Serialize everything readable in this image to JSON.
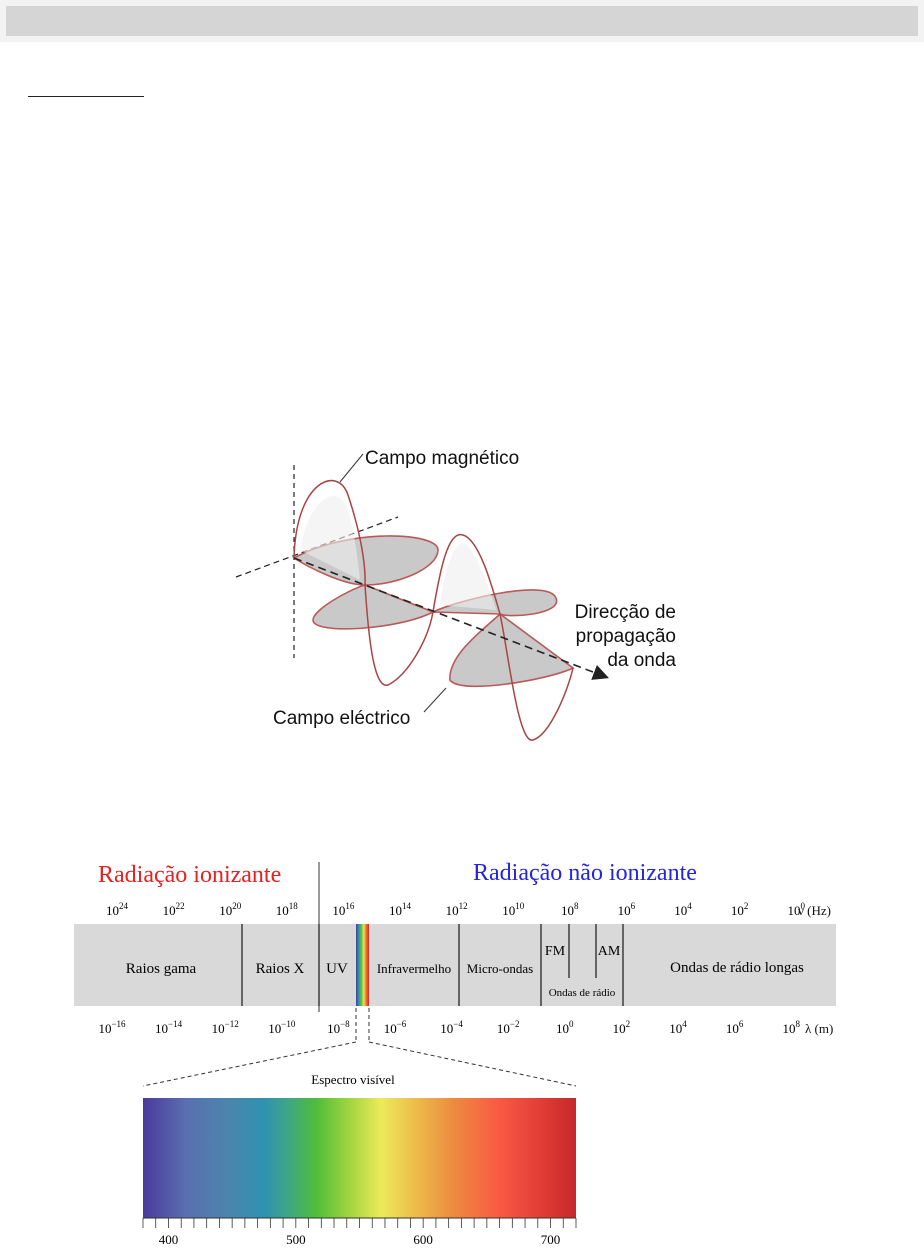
{
  "wave_figure": {
    "label_magnetic": "Campo magnético",
    "label_direction": [
      "Direcção de",
      "propagação",
      "da onda"
    ],
    "label_electric": "Campo eléctrico"
  },
  "spectrum": {
    "heading_ionizing": "Radiação ionizante",
    "heading_non_ionizing": "Radiação não ionizante",
    "colors": {
      "ionizing": "#e8201e",
      "non_ionizing": "#2424e0",
      "band": "#d9d9d9"
    },
    "frequency_unit": "ν (Hz)",
    "frequency_exponents": [
      "24",
      "22",
      "20",
      "18",
      "16",
      "14",
      "12",
      "10",
      "8",
      "6",
      "4",
      "2",
      "0"
    ],
    "wavelength_unit": "λ (m)",
    "wavelength_exponents": [
      "−16",
      "−14",
      "−12",
      "−10",
      "−8",
      "−6",
      "−4",
      "−2",
      "0",
      "2",
      "4",
      "6",
      "8"
    ],
    "tick_base": "10",
    "regions": {
      "gamma": "Raios gama",
      "xray": "Raios X",
      "uv": "UV",
      "infrared": "Infravermelho",
      "microwave": "Micro-ondas",
      "fm": "FM",
      "am": "AM",
      "radio_waves": "Ondas de rádio",
      "long_radio": "Ondas de rádio longas"
    },
    "visible_title": "Espectro visível",
    "visible_ticks": [
      "400",
      "500",
      "600",
      "700"
    ]
  }
}
